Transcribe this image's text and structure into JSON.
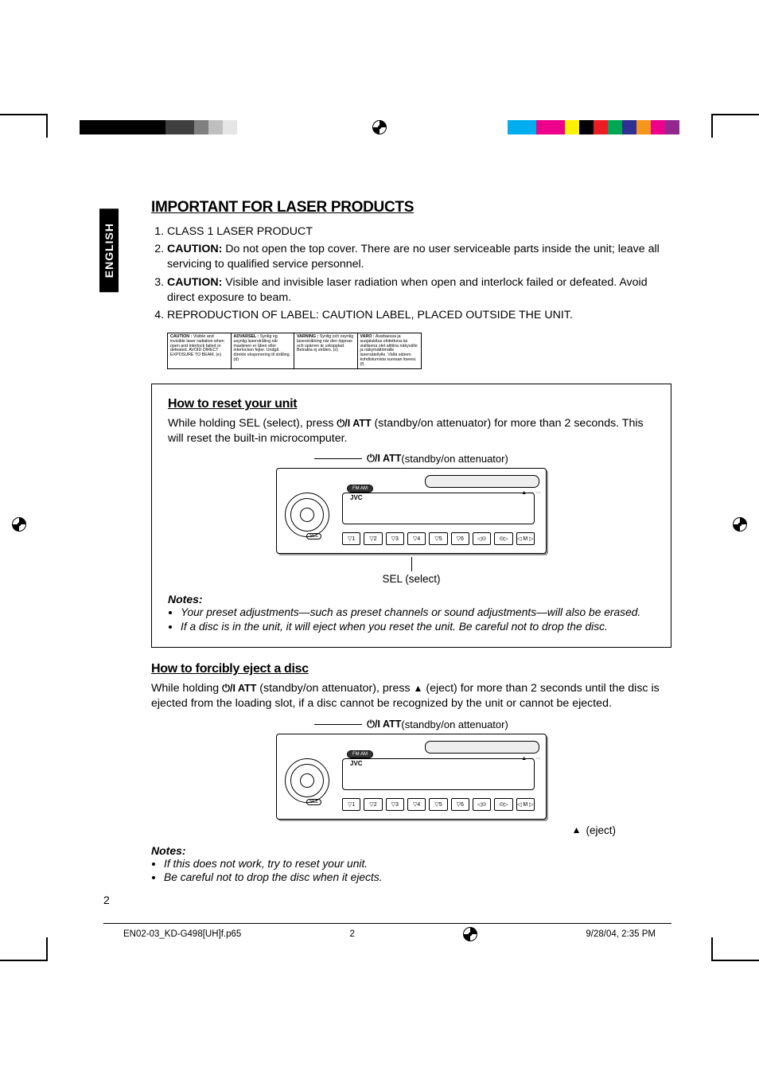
{
  "colorbars": {
    "left": [
      "#000000",
      "#000000",
      "#000000",
      "#000000",
      "#000000",
      "#000000",
      "#3f3f3f",
      "#3f3f3f",
      "#808080",
      "#bfbfbf",
      "#e5e5e5",
      "#ffffff",
      "#ffffff"
    ],
    "right": [
      "#ffffff",
      "#00aeef",
      "#00aeef",
      "#ec008c",
      "#ec008c",
      "#fff200",
      "#000000",
      "#ed1c24",
      "#00a651",
      "#2e3192",
      "#f7941d",
      "#ec008c",
      "#92278f"
    ]
  },
  "lang_tab": "ENGLISH",
  "title": "IMPORTANT FOR LASER PRODUCTS",
  "cautions": [
    {
      "n": "1.",
      "text": "CLASS 1 LASER PRODUCT"
    },
    {
      "n": "2.",
      "bold": "CAUTION:",
      "text": " Do not open the top cover. There are no user serviceable parts inside the unit; leave all servicing to qualified service personnel."
    },
    {
      "n": "3.",
      "bold": "CAUTION:",
      "text": " Visible and invisible laser radiation when open and interlock failed or defeated. Avoid direct exposure to beam."
    },
    {
      "n": "4.",
      "text": "REPRODUCTION OF LABEL: CAUTION LABEL, PLACED OUTSIDE THE UNIT."
    }
  ],
  "labelbox": {
    "c1": {
      "hdr": "CAUTION :",
      "body": "Visible and invisible laser radiation when open and interlock failed or defeated. AVOID DIRECT EXPOSURE TO BEAM.",
      "tag": "(e)"
    },
    "c2": {
      "hdr": "ADVARSEL :",
      "body": "Synlig og usynlig laserstråling når maskinen er åben eller interlocken fejler. Undgå direkte eksponering til stråling.",
      "tag": "(d)"
    },
    "c3": {
      "hdr": "VARNING :",
      "body": "Synlig och osynlig laserstrålning när den öppnas och spärren är urkopplad. Betrakta ej strålen.",
      "tag": "(s)"
    },
    "c4": {
      "hdr": "VARO :",
      "body": "Avattaessa ja suojalukitus ohitettuna tai viallisena olet alttiina näkyvälle ja näkymättömälle lasersäteilylle. Vältä säteen kohdistumista suoraan itseesi.",
      "tag": "(f)"
    }
  },
  "reset": {
    "title": "How to reset your unit",
    "p1a": "While holding SEL (select), press ",
    "att_icon": "⏻/I ATT",
    "p1b": " (standby/on attenuator) for more than 2 seconds. This will reset the built-in microcomputer.",
    "callout_top": " (standby/on attenuator)",
    "callout_bottom": "SEL (select)",
    "notes_hdr": "Notes:",
    "notes": [
      "Your preset adjustments—such as preset channels or sound adjustments—will also be erased.",
      "If a disc is in the unit, it will eject when you reset the unit. Be careful not to drop the disc."
    ]
  },
  "eject": {
    "title": "How to forcibly eject a disc",
    "p1a": "While holding ",
    "att_icon": "⏻/I ATT",
    "p1b": " (standby/on attenuator), press ",
    "eject_icon": "▲",
    "p1c": " (eject) for more than 2 seconds until the disc is ejected from the loading slot, if a disc cannot be recognized by the unit or cannot be ejected.",
    "callout_top": " (standby/on attenuator)",
    "callout_bottom": " (eject)",
    "notes_hdr": "Notes:",
    "notes": [
      "If this does not work, try to reset your unit.",
      "Be careful not to drop the disc when it ejects."
    ]
  },
  "device": {
    "brand": "JVC",
    "fmam": "FM AM",
    "sel": "SEL",
    "buttons": [
      "▽1",
      "▽2",
      "▽3",
      "▽4",
      "▽5",
      "▽6",
      "◁⊙",
      "⊙▷",
      "◁ M ▷"
    ],
    "side": "▲\n···\n···\n"
  },
  "page_number": "2",
  "footer": {
    "file": "EN02-03_KD-G498[UH]f.p65",
    "page": "2",
    "date": "9/28/04, 2:35 PM"
  }
}
